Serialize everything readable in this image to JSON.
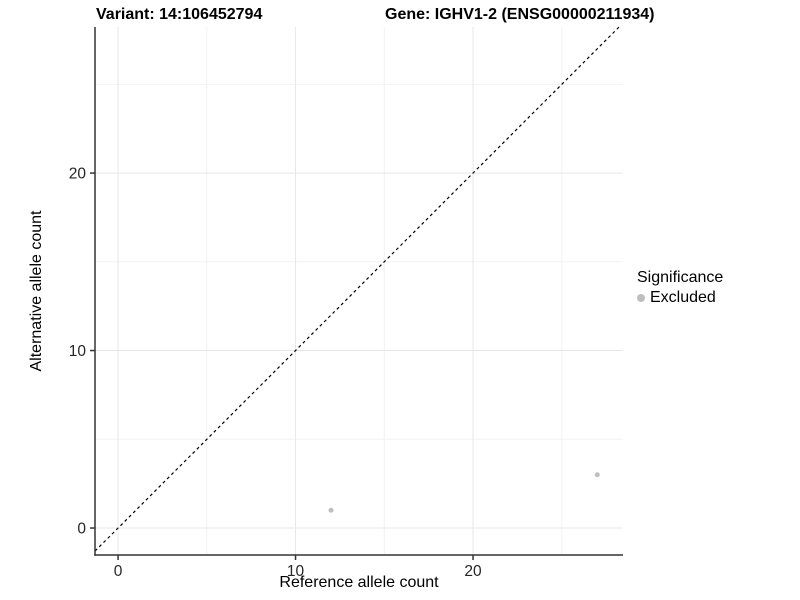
{
  "chart_data": {
    "type": "scatter",
    "title_left": "Variant: 14:106452794",
    "title_right": "Gene: IGHV1-2 (ENSG00000211934)",
    "xlabel": "Reference allele count",
    "ylabel": "Alternative allele count",
    "xlim": [
      -1.3,
      28.45
    ],
    "ylim": [
      -1.52,
      28.23
    ],
    "x_ticks": [
      0,
      10,
      20
    ],
    "y_ticks": [
      0,
      10,
      20
    ],
    "x_minor_ticks": [
      5,
      15,
      25
    ],
    "y_minor_ticks": [
      5,
      15,
      25
    ],
    "grid": true,
    "identity_line": {
      "style": "dashed",
      "color": "#000000",
      "dash": "3 3"
    },
    "series": [
      {
        "name": "Excluded",
        "color": "#bebebe",
        "point_radius": 2.5,
        "points": [
          {
            "x": 12,
            "y": 1
          },
          {
            "x": 27,
            "y": 3
          }
        ]
      }
    ],
    "legend": {
      "title": "Significance",
      "position": "right",
      "items": [
        {
          "label": "Excluded",
          "color": "#bebebe"
        }
      ]
    },
    "colors": {
      "axis_line": "#333333",
      "tick_text": "#262626",
      "major_grid": "#e7e7e7",
      "minor_grid": "#f2f2f2",
      "background": "#ffffff"
    }
  }
}
